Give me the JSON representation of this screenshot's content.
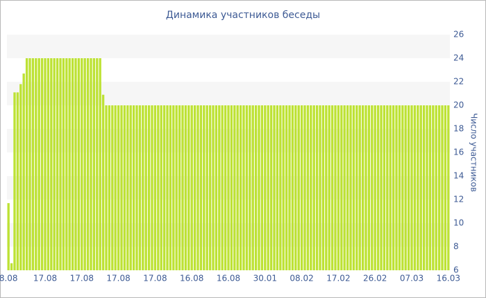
{
  "chart_data": {
    "type": "bar",
    "title": "Динамика участников беседы",
    "y_label": "Число участников",
    "categories": [
      "8.08",
      null,
      null,
      null,
      null,
      null,
      null,
      null,
      null,
      null,
      null,
      null,
      "17.08",
      null,
      null,
      null,
      null,
      null,
      null,
      null,
      null,
      null,
      null,
      null,
      "17.08",
      null,
      null,
      null,
      null,
      null,
      null,
      null,
      null,
      null,
      null,
      null,
      "17.08",
      null,
      null,
      null,
      null,
      null,
      null,
      null,
      null,
      null,
      null,
      null,
      "17.08",
      null,
      null,
      null,
      null,
      null,
      null,
      null,
      null,
      null,
      null,
      null,
      "16.08",
      null,
      null,
      null,
      null,
      null,
      null,
      null,
      null,
      null,
      null,
      null,
      "16.08",
      null,
      null,
      null,
      null,
      null,
      null,
      null,
      null,
      null,
      null,
      null,
      "30.01",
      null,
      null,
      null,
      null,
      null,
      null,
      null,
      null,
      null,
      null,
      null,
      "08.02",
      null,
      null,
      null,
      null,
      null,
      null,
      null,
      null,
      null,
      null,
      null,
      "17.02",
      null,
      null,
      null,
      null,
      null,
      null,
      null,
      null,
      null,
      null,
      null,
      "26.02",
      null,
      null,
      null,
      null,
      null,
      null,
      null,
      null,
      null,
      null,
      null,
      "07.03",
      null,
      null,
      null,
      null,
      null,
      null,
      null,
      null,
      null,
      null,
      null,
      "16.03"
    ],
    "values": [
      11.7,
      6.6,
      21.1,
      21.1,
      21.8,
      22.7,
      24,
      24,
      24,
      24,
      24,
      24,
      24,
      24,
      24,
      24,
      24,
      24,
      24,
      24,
      24,
      24,
      24,
      24,
      24,
      24,
      24,
      24,
      24,
      24,
      24,
      20.9,
      20,
      20,
      20,
      20,
      20,
      20,
      20,
      20,
      20,
      20,
      20,
      20,
      20,
      20,
      20,
      20,
      20,
      20,
      20,
      20,
      20,
      20,
      20,
      20,
      20,
      20,
      20,
      20,
      20,
      20,
      20,
      20,
      20,
      20,
      20,
      20,
      20,
      20,
      20,
      20,
      20,
      20,
      20,
      20,
      20,
      20,
      20,
      20,
      20,
      20,
      20,
      20,
      20,
      20,
      20,
      20,
      20,
      20,
      20,
      20,
      20,
      20,
      20,
      20,
      20,
      20,
      20,
      20,
      20,
      20,
      20,
      20,
      20,
      20,
      20,
      20,
      20,
      20,
      20,
      20,
      20,
      20,
      20,
      20,
      20,
      20,
      20,
      20,
      20,
      20,
      20,
      20,
      20,
      20,
      20,
      20,
      20,
      20,
      20,
      20,
      20,
      20,
      20,
      20,
      20,
      20,
      20,
      20,
      20,
      20,
      20,
      20,
      20
    ],
    "color": "#bde234",
    "ylim": [
      6,
      26
    ],
    "yticks": [
      6,
      8,
      10,
      12,
      14,
      16,
      18,
      20,
      22,
      24,
      26
    ],
    "grid": true,
    "y_axis_side": "right"
  }
}
